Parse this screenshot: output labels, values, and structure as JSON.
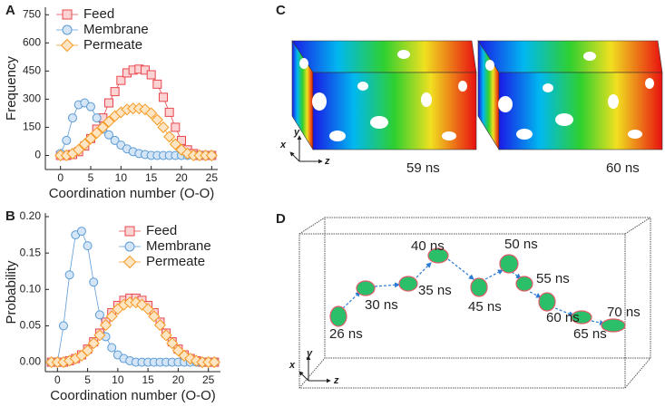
{
  "chart_data": [
    {
      "type": "line",
      "label": "A",
      "x_label": "Coordination number (O-O)",
      "y_label": "Frequency",
      "xlim": [
        -2.5,
        26
      ],
      "ylim": [
        -75,
        790
      ],
      "xticks": [
        0,
        5,
        10,
        15,
        20,
        25
      ],
      "yticks": [
        0,
        150,
        300,
        450,
        600,
        750
      ],
      "legend": "upper left",
      "x": [
        0,
        1,
        2,
        3,
        4,
        5,
        6,
        7,
        8,
        9,
        10,
        11,
        12,
        13,
        14,
        15,
        16,
        17,
        18,
        19,
        20,
        21,
        22,
        23,
        24,
        25
      ],
      "series": [
        {
          "name": "Feed",
          "color": "#e8474f",
          "marker_fill": "#fbd3d3",
          "marker": "square",
          "values": [
            0,
            0,
            5,
            20,
            50,
            90,
            140,
            200,
            280,
            340,
            400,
            440,
            455,
            460,
            455,
            430,
            380,
            310,
            230,
            150,
            80,
            30,
            10,
            0,
            0,
            0
          ]
        },
        {
          "name": "Membrane",
          "color": "#5b9bd5",
          "marker_fill": "#d3e5f6",
          "marker": "circle",
          "values": [
            10,
            80,
            200,
            270,
            280,
            260,
            200,
            140,
            110,
            80,
            55,
            35,
            20,
            10,
            5,
            0,
            0,
            0,
            0,
            0,
            0,
            0,
            0,
            0,
            0,
            0
          ]
        },
        {
          "name": "Permeate",
          "color": "#f59a23",
          "marker_fill": "#fde4c2",
          "marker": "diamond",
          "values": [
            0,
            0,
            10,
            30,
            60,
            90,
            120,
            150,
            180,
            210,
            230,
            245,
            250,
            250,
            245,
            225,
            190,
            150,
            100,
            60,
            30,
            10,
            0,
            0,
            0,
            0
          ]
        }
      ]
    },
    {
      "type": "line",
      "label": "B",
      "x_label": "Coordination number (O-O)",
      "y_label": "Probability",
      "xlim": [
        -2,
        27
      ],
      "ylim": [
        -0.013,
        0.205
      ],
      "xticks": [
        0,
        5,
        10,
        15,
        20,
        25
      ],
      "yticks": [
        {
          "value": 0,
          "label": "0.00"
        },
        {
          "value": 0.05,
          "label": "0.05"
        },
        {
          "value": 0.1,
          "label": "0.10"
        },
        {
          "value": 0.15,
          "label": "0.15"
        },
        {
          "value": 0.2,
          "label": "0.20"
        }
      ],
      "legend": "upper right",
      "x": [
        -1,
        0,
        1,
        2,
        3,
        4,
        5,
        6,
        7,
        8,
        9,
        10,
        11,
        12,
        13,
        14,
        15,
        16,
        17,
        18,
        19,
        20,
        21,
        22,
        23,
        24,
        25,
        26
      ],
      "series": [
        {
          "name": "Feed",
          "color": "#e8474f",
          "marker_fill": "#fbd3d3",
          "marker": "square",
          "values": [
            0,
            0,
            0,
            0.002,
            0.005,
            0.01,
            0.018,
            0.028,
            0.04,
            0.055,
            0.068,
            0.078,
            0.085,
            0.088,
            0.088,
            0.085,
            0.078,
            0.068,
            0.055,
            0.04,
            0.028,
            0.018,
            0.01,
            0.005,
            0.002,
            0,
            0,
            0
          ]
        },
        {
          "name": "Membrane",
          "color": "#5b9bd5",
          "marker_fill": "#d3e5f6",
          "marker": "circle",
          "values": [
            0,
            0,
            0.05,
            0.12,
            0.175,
            0.18,
            0.16,
            0.11,
            0.065,
            0.035,
            0.02,
            0.01,
            0.005,
            0.002,
            0,
            0,
            0,
            0,
            0,
            0,
            0,
            0,
            0,
            0,
            0,
            0,
            0,
            0
          ]
        },
        {
          "name": "Permeate",
          "color": "#f59a23",
          "marker_fill": "#fde4c2",
          "marker": "diamond",
          "values": [
            0,
            0,
            0,
            0.002,
            0.005,
            0.009,
            0.016,
            0.026,
            0.037,
            0.051,
            0.063,
            0.073,
            0.079,
            0.082,
            0.082,
            0.079,
            0.073,
            0.063,
            0.051,
            0.037,
            0.026,
            0.016,
            0.009,
            0.005,
            0.002,
            0,
            0,
            0
          ]
        }
      ]
    }
  ],
  "panel_c": {
    "label": "C",
    "times": [
      "59 ns",
      "60 ns"
    ],
    "axes": [
      "x",
      "y",
      "z"
    ]
  },
  "panel_d": {
    "label": "D",
    "times": [
      "26 ns",
      "30 ns",
      "35 ns",
      "40 ns",
      "45 ns",
      "50 ns",
      "55 ns",
      "60 ns",
      "65 ns",
      "70 ns"
    ],
    "axes": [
      "x",
      "y",
      "z"
    ]
  }
}
